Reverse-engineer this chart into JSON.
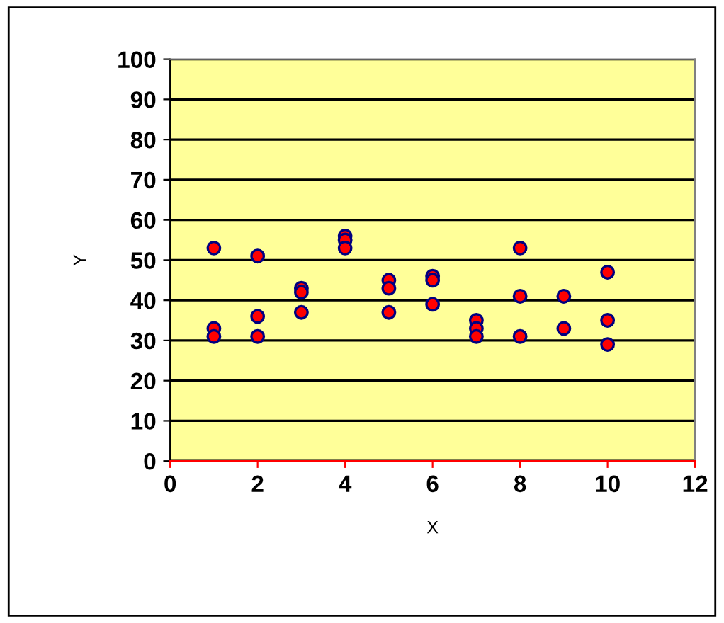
{
  "chart_data": {
    "type": "scatter",
    "xlabel": "X",
    "ylabel": "Y",
    "x": [
      1,
      1,
      1,
      2,
      2,
      2,
      3,
      3,
      3,
      4,
      4,
      4,
      5,
      5,
      5,
      6,
      6,
      6,
      7,
      7,
      7,
      8,
      8,
      8,
      9,
      9,
      10,
      10,
      10
    ],
    "values": [
      53,
      33,
      31,
      51,
      36,
      31,
      43,
      42,
      37,
      56,
      55,
      53,
      45,
      43,
      37,
      46,
      45,
      39,
      35,
      33,
      31,
      53,
      41,
      31,
      41,
      33,
      47,
      35,
      29
    ],
    "color": "#ff0000",
    "xlim": [
      0,
      12
    ],
    "xticks": [
      0,
      2,
      4,
      6,
      8,
      10,
      12
    ],
    "ylim": [
      0,
      100
    ],
    "yticks": [
      0,
      10,
      20,
      30,
      40,
      50,
      60,
      70,
      80,
      90,
      100
    ],
    "grid": "y",
    "marker": "circle"
  }
}
